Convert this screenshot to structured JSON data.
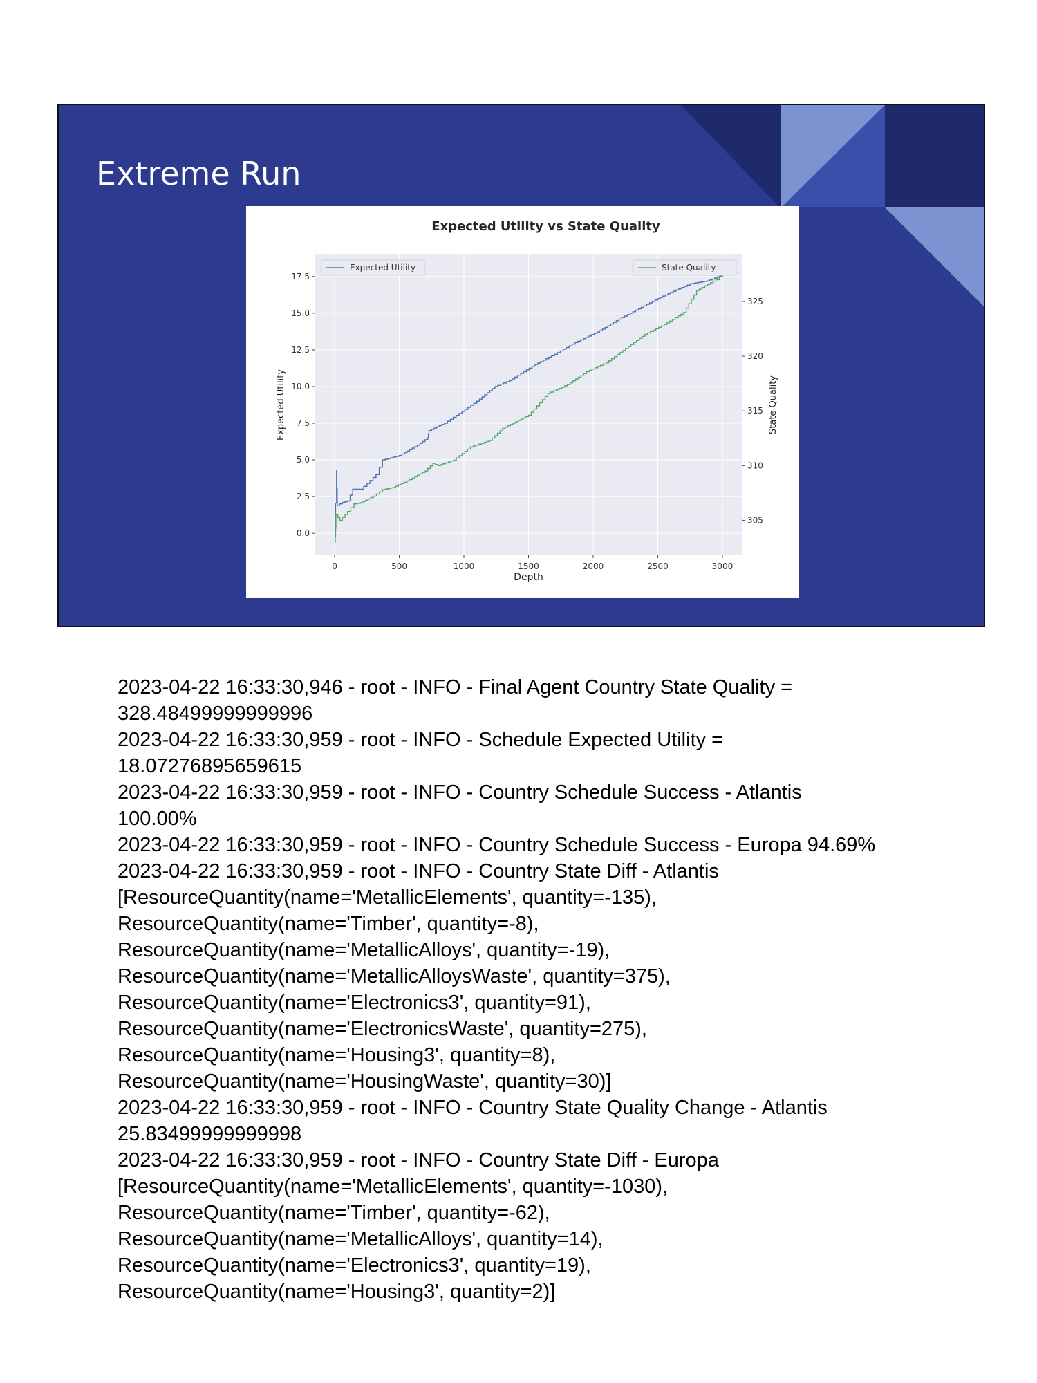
{
  "slide": {
    "title": "Extreme Run",
    "colors": {
      "background": "#2c3a8f",
      "dark": "#1f2a6c",
      "light": "#7b93d1",
      "mid": "#3a4eab"
    }
  },
  "chart_data": {
    "type": "line",
    "title": "Expected Utility vs State Quality",
    "xlabel": "Depth",
    "ylabel": "Expected Utility",
    "y2label": "State Quality",
    "xlim": [
      -150,
      3150
    ],
    "ylim": [
      -1.5,
      19.0
    ],
    "y2lim": [
      301.8,
      329.3
    ],
    "xticks": [
      0,
      500,
      1000,
      1500,
      2000,
      2500,
      3000
    ],
    "yticks": [
      0.0,
      2.5,
      5.0,
      7.5,
      10.0,
      12.5,
      15.0,
      17.5
    ],
    "y2ticks": [
      305,
      310,
      315,
      320,
      325
    ],
    "grid": true,
    "background": "#eaeaf2",
    "series": [
      {
        "name": "Expected Utility",
        "axis": "left",
        "color": "#4c72b0",
        "legend": "top-left",
        "points": [
          [
            0,
            -0.2
          ],
          [
            15,
            4.3
          ],
          [
            20,
            1.9
          ],
          [
            60,
            2.1
          ],
          [
            100,
            2.2
          ],
          [
            140,
            3.0
          ],
          [
            200,
            3.0
          ],
          [
            250,
            3.4
          ],
          [
            320,
            4.0
          ],
          [
            370,
            5.0
          ],
          [
            500,
            5.3
          ],
          [
            640,
            6.0
          ],
          [
            720,
            6.5
          ],
          [
            730,
            7.0
          ],
          [
            850,
            7.5
          ],
          [
            985,
            8.3
          ],
          [
            1100,
            9.0
          ],
          [
            1240,
            10.0
          ],
          [
            1350,
            10.4
          ],
          [
            1550,
            11.5
          ],
          [
            1700,
            12.2
          ],
          [
            1860,
            13.0
          ],
          [
            2050,
            13.8
          ],
          [
            2200,
            14.6
          ],
          [
            2350,
            15.3
          ],
          [
            2500,
            16.0
          ],
          [
            2620,
            16.5
          ],
          [
            2750,
            17.0
          ],
          [
            2880,
            17.2
          ],
          [
            3000,
            17.6
          ]
        ]
      },
      {
        "name": "State Quality",
        "axis": "right",
        "color": "#55a868",
        "legend": "top-right",
        "points": [
          [
            0,
            303.0
          ],
          [
            10,
            305.5
          ],
          [
            40,
            305.0
          ],
          [
            100,
            305.8
          ],
          [
            150,
            306.5
          ],
          [
            200,
            306.6
          ],
          [
            300,
            307.2
          ],
          [
            370,
            307.8
          ],
          [
            450,
            308.0
          ],
          [
            560,
            308.6
          ],
          [
            700,
            309.5
          ],
          [
            760,
            310.2
          ],
          [
            800,
            310.0
          ],
          [
            920,
            310.5
          ],
          [
            1050,
            311.7
          ],
          [
            1200,
            312.3
          ],
          [
            1300,
            313.4
          ],
          [
            1400,
            314.0
          ],
          [
            1500,
            314.6
          ],
          [
            1650,
            316.6
          ],
          [
            1800,
            317.4
          ],
          [
            1950,
            318.6
          ],
          [
            2100,
            319.4
          ],
          [
            2250,
            320.7
          ],
          [
            2400,
            322.0
          ],
          [
            2550,
            322.9
          ],
          [
            2700,
            324.0
          ],
          [
            2800,
            326.0
          ],
          [
            2950,
            327.0
          ],
          [
            3000,
            327.6
          ]
        ]
      }
    ]
  },
  "log_lines": [
    "2023-04-22 16:33:30,946 - root - INFO - Final Agent Country State Quality =",
    "328.48499999999996",
    "2023-04-22 16:33:30,959 - root - INFO - Schedule Expected Utility =",
    "18.07276895659615",
    "2023-04-22 16:33:30,959 - root - INFO - Country Schedule Success - Atlantis",
    "100.00%",
    "2023-04-22 16:33:30,959 - root - INFO - Country Schedule Success - Europa 94.69%",
    "2023-04-22 16:33:30,959 - root - INFO - Country State Diff - Atlantis",
    "[ResourceQuantity(name='MetallicElements', quantity=-135),",
    "ResourceQuantity(name='Timber', quantity=-8),",
    "ResourceQuantity(name='MetallicAlloys', quantity=-19),",
    "ResourceQuantity(name='MetallicAlloysWaste', quantity=375),",
    "ResourceQuantity(name='Electronics3', quantity=91),",
    "ResourceQuantity(name='ElectronicsWaste', quantity=275),",
    "ResourceQuantity(name='Housing3', quantity=8),",
    "ResourceQuantity(name='HousingWaste', quantity=30)]",
    "2023-04-22 16:33:30,959 - root - INFO - Country State Quality Change - Atlantis",
    "25.83499999999998",
    "2023-04-22 16:33:30,959 - root - INFO - Country State Diff - Europa",
    "[ResourceQuantity(name='MetallicElements', quantity=-1030),",
    "ResourceQuantity(name='Timber', quantity=-62),",
    "ResourceQuantity(name='MetallicAlloys', quantity=14),",
    "ResourceQuantity(name='Electronics3', quantity=19),",
    "ResourceQuantity(name='Housing3', quantity=2)]"
  ]
}
